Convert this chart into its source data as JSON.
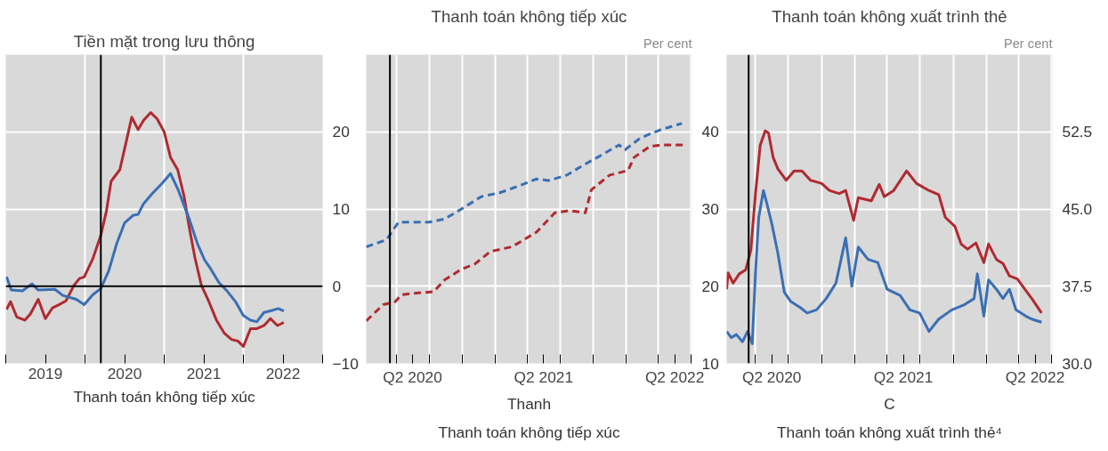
{
  "chart_data": [
    {
      "type": "line",
      "title": "Tiền mặt trong lưu thông",
      "xlim": [
        2019,
        2023
      ],
      "ylim": [
        -10,
        30
      ],
      "yticks": [
        {
          "value": -10,
          "label": "−10"
        },
        0,
        10,
        20
      ],
      "xticks": [
        {
          "value": 2019,
          "label": null
        },
        {
          "value": 2019.5,
          "label": "2019"
        },
        {
          "value": 2020,
          "label": null
        },
        {
          "value": 2020.5,
          "label": "2020"
        },
        {
          "value": 2021,
          "label": null
        },
        {
          "value": 2021.5,
          "label": "2021"
        },
        {
          "value": 2022,
          "label": null
        },
        {
          "value": 2022.5,
          "label": "2022"
        },
        {
          "value": 2023,
          "label": null
        }
      ],
      "grid": true,
      "ref_lines": [
        {
          "axis": "x",
          "value": 2020.2,
          "label": null,
          "color": "#000000"
        },
        {
          "axis": "y",
          "value": 0,
          "label": null,
          "color": "#000000"
        }
      ],
      "annotations": [
        "Thanh toán không tiếp xúc"
      ],
      "series": [
        {
          "color": "#b02a30",
          "x": [
            2019.01,
            2019.06,
            2019.14,
            2019.24,
            2019.31,
            2019.41,
            2019.5,
            2019.59,
            2019.67,
            2019.76,
            2019.86,
            2019.93,
            2019.99,
            2020.1,
            2020.2,
            2020.27,
            2020.33,
            2020.44,
            2020.5,
            2020.59,
            2020.67,
            2020.74,
            2020.83,
            2020.91,
            2021.0,
            2021.08,
            2021.17,
            2021.25,
            2021.32,
            2021.39,
            2021.47,
            2021.56,
            2021.66,
            2021.76,
            2021.85,
            2021.93,
            2022.0,
            2022.09,
            2022.17,
            2022.26,
            2022.34,
            2022.43,
            2022.51
          ],
          "values": [
            -3.0,
            -2.0,
            -4.0,
            -4.4,
            -3.6,
            -1.7,
            -4.2,
            -2.8,
            -2.4,
            -1.9,
            0.1,
            1.0,
            1.2,
            3.6,
            6.6,
            9.7,
            13.6,
            15.1,
            17.8,
            21.9,
            20.3,
            21.5,
            22.5,
            21.7,
            20.0,
            16.7,
            15.1,
            11.7,
            7.4,
            3.6,
            0.1,
            -1.9,
            -4.4,
            -6.1,
            -6.9,
            -7.1,
            -7.8,
            -5.5,
            -5.5,
            -5.1,
            -4.2,
            -5.1,
            -4.7
          ]
        },
        {
          "color": "#3a6fb4",
          "x": [
            2019.01,
            2019.07,
            2019.21,
            2019.33,
            2019.41,
            2019.62,
            2019.72,
            2019.89,
            2019.99,
            2020.1,
            2020.2,
            2020.3,
            2020.4,
            2020.5,
            2020.61,
            2020.67,
            2020.74,
            2020.84,
            2020.98,
            2021.08,
            2021.18,
            2021.32,
            2021.42,
            2021.51,
            2021.59,
            2021.69,
            2021.8,
            2021.9,
            2022.0,
            2022.09,
            2022.17,
            2022.26,
            2022.34,
            2022.44,
            2022.51
          ],
          "values": [
            1.2,
            -0.5,
            -0.6,
            0.3,
            -0.5,
            -0.4,
            -1.2,
            -1.7,
            -2.4,
            -1.1,
            -0.3,
            2.0,
            5.5,
            8.2,
            9.2,
            9.3,
            10.7,
            11.9,
            13.4,
            14.6,
            12.4,
            8.6,
            5.5,
            3.4,
            2.2,
            0.5,
            -0.7,
            -2.0,
            -3.8,
            -4.4,
            -4.6,
            -3.4,
            -3.2,
            -2.9,
            -3.2
          ]
        }
      ]
    },
    {
      "type": "line",
      "title": "Thanh toán không tiếp xúc",
      "ylabel": "Per cent",
      "line_style": "dashed",
      "xlim": [
        "2020-01-08",
        "2022-07-03"
      ],
      "ylim": [
        10,
        50
      ],
      "yticks": [
        10,
        20,
        30,
        40
      ],
      "xticks": [
        {
          "value": "2020-04-01",
          "label": null
        },
        {
          "value": "2020-05-16",
          "label": "Q2 2020"
        },
        {
          "value": "2020-07-01",
          "label": null
        },
        {
          "value": "2020-10-01",
          "label": null
        },
        {
          "value": "2021-01-01",
          "label": null
        },
        {
          "value": "2021-04-01",
          "label": null
        },
        {
          "value": "2021-05-16",
          "label": "Q2 2021"
        },
        {
          "value": "2021-07-01",
          "label": null
        },
        {
          "value": "2021-10-01",
          "label": null
        },
        {
          "value": "2022-01-01",
          "label": null
        },
        {
          "value": "2022-04-01",
          "label": null
        },
        {
          "value": "2022-05-16",
          "label": "Q2 2022"
        },
        {
          "value": "2022-07-01",
          "label": null
        }
      ],
      "grid": true,
      "ref_lines": [
        {
          "axis": "x",
          "value": "2020-03-14",
          "label": null,
          "color": "#000000"
        }
      ],
      "annotations": [
        "Thanh",
        "Thanh toán không tiếp xúc"
      ],
      "series": [
        {
          "color": "#3a6fb4",
          "x": [
            "2020-01-08",
            "2020-03-04",
            "2020-04-07",
            "2020-05-11",
            "2020-07-01",
            "2020-08-13",
            "2020-09-29",
            "2020-11-23",
            "2021-01-13",
            "2021-03-14",
            "2021-04-26",
            "2021-05-30",
            "2021-07-20",
            "2021-08-31",
            "2021-10-13",
            "2021-12-12",
            "2021-12-29",
            "2022-02-09",
            "2022-04-02",
            "2022-06-05"
          ],
          "values": [
            25.1,
            26.0,
            28.3,
            28.3,
            28.3,
            28.7,
            30.0,
            31.6,
            32.1,
            33.1,
            33.9,
            33.7,
            34.4,
            35.6,
            36.7,
            38.3,
            37.7,
            39.2,
            40.2,
            41.1
          ]
        },
        {
          "color": "#b02a30",
          "x": [
            "2020-01-08",
            "2020-02-24",
            "2020-03-29",
            "2020-04-15",
            "2020-05-27",
            "2020-07-14",
            "2020-08-13",
            "2020-09-29",
            "2020-11-06",
            "2020-12-19",
            "2021-02-16",
            "2021-03-14",
            "2021-04-26",
            "2021-06-16",
            "2021-07-28",
            "2021-09-09",
            "2021-09-26",
            "2021-11-16",
            "2022-01-06",
            "2022-01-23",
            "2022-03-07",
            "2022-04-10",
            "2022-06-09"
          ],
          "values": [
            15.5,
            17.6,
            18.0,
            18.9,
            19.1,
            19.3,
            20.8,
            22.2,
            22.9,
            24.5,
            25.1,
            25.8,
            27.0,
            29.5,
            29.8,
            29.5,
            32.5,
            34.4,
            35.0,
            36.7,
            38.1,
            38.3,
            38.3
          ]
        }
      ]
    },
    {
      "type": "line",
      "title": "Thanh toán không xuất trình thẻ",
      "ylabel": "Per cent",
      "xlim": [
        "2020-01-12",
        "2022-07-03"
      ],
      "ylim": [
        30,
        60
      ],
      "yticks": [
        {
          "value": 30,
          "label": "30.0"
        },
        37.5,
        {
          "value": 45,
          "label": "45.0"
        },
        52.5
      ],
      "xticks": [
        {
          "value": "2020-04-01",
          "label": null
        },
        {
          "value": "2020-05-16",
          "label": "Q2 2020"
        },
        {
          "value": "2020-07-01",
          "label": null
        },
        {
          "value": "2020-10-01",
          "label": null
        },
        {
          "value": "2021-01-01",
          "label": null
        },
        {
          "value": "2021-04-01",
          "label": null
        },
        {
          "value": "2021-05-16",
          "label": "Q2 2021"
        },
        {
          "value": "2021-07-01",
          "label": null
        },
        {
          "value": "2021-10-01",
          "label": null
        },
        {
          "value": "2022-01-01",
          "label": null
        },
        {
          "value": "2022-04-01",
          "label": null
        },
        {
          "value": "2022-05-16",
          "label": "Q2 2022"
        },
        {
          "value": "2022-07-01",
          "label": null
        }
      ],
      "grid": true,
      "ref_lines": [
        {
          "axis": "x",
          "value": "2020-03-13",
          "label": null,
          "color": "#000000"
        }
      ],
      "annotations": [
        "C",
        "Thanh toán không xuất trình thẻ⁴"
      ],
      "series": [
        {
          "color": "#b02a30",
          "x": [
            "2020-01-12",
            "2020-01-16",
            "2020-01-30",
            "2020-02-16",
            "2020-03-05",
            "2020-03-19",
            "2020-04-01",
            "2020-04-14",
            "2020-04-28",
            "2020-05-07",
            "2020-05-20",
            "2020-06-02",
            "2020-06-25",
            "2020-07-17",
            "2020-08-08",
            "2020-08-31",
            "2020-10-01",
            "2020-10-23",
            "2020-11-19",
            "2020-12-07",
            "2020-12-29",
            "2021-01-11",
            "2021-02-16",
            "2021-03-10",
            "2021-03-24",
            "2021-04-19",
            "2021-05-25",
            "2021-06-21",
            "2021-07-26",
            "2021-08-22",
            "2021-09-09",
            "2021-10-06",
            "2021-10-23",
            "2021-11-10",
            "2021-12-03",
            "2021-12-25",
            "2022-01-07",
            "2022-01-29",
            "2022-02-16",
            "2022-03-06",
            "2022-03-28",
            "2022-04-20",
            "2022-05-07",
            "2022-06-03"
          ],
          "values": [
            37.2,
            38.8,
            37.8,
            38.7,
            39.1,
            41.0,
            46.5,
            51.2,
            52.6,
            52.4,
            50.0,
            48.9,
            47.8,
            48.7,
            48.7,
            47.8,
            47.5,
            46.8,
            46.5,
            46.8,
            43.9,
            46.1,
            45.8,
            47.4,
            46.2,
            46.8,
            48.7,
            47.5,
            46.8,
            46.4,
            44.2,
            43.3,
            41.6,
            41.1,
            41.7,
            39.8,
            41.6,
            40.1,
            39.7,
            38.5,
            38.2,
            37.1,
            36.3,
            34.9
          ]
        },
        {
          "color": "#3a6fb4",
          "x": [
            "2020-01-12",
            "2020-01-25",
            "2020-02-08",
            "2020-02-25",
            "2020-03-10",
            "2020-03-23",
            "2020-04-01",
            "2020-04-10",
            "2020-04-23",
            "2020-05-02",
            "2020-05-16",
            "2020-06-02",
            "2020-06-20",
            "2020-07-08",
            "2020-08-04",
            "2020-08-22",
            "2020-09-17",
            "2020-10-14",
            "2020-11-10",
            "2020-12-07",
            "2020-12-24",
            "2021-01-11",
            "2021-02-07",
            "2021-03-06",
            "2021-04-01",
            "2021-05-07",
            "2021-06-03",
            "2021-06-30",
            "2021-07-26",
            "2021-08-22",
            "2021-09-27",
            "2021-11-01",
            "2021-11-28",
            "2021-12-07",
            "2021-12-25",
            "2022-01-07",
            "2022-01-29",
            "2022-02-16",
            "2022-03-06",
            "2022-03-24",
            "2022-04-20",
            "2022-05-07",
            "2022-06-03"
          ],
          "values": [
            33.1,
            32.5,
            32.8,
            32.1,
            33.1,
            31.9,
            38.9,
            44.2,
            46.8,
            45.6,
            43.6,
            40.7,
            36.9,
            36.0,
            35.4,
            34.9,
            35.2,
            36.3,
            37.8,
            42.2,
            37.5,
            41.3,
            40.1,
            39.8,
            37.2,
            36.6,
            35.2,
            34.9,
            33.1,
            34.3,
            35.2,
            35.7,
            36.3,
            38.7,
            34.6,
            38.1,
            37.2,
            36.3,
            37.2,
            35.2,
            34.6,
            34.3,
            34.0
          ]
        }
      ]
    }
  ]
}
